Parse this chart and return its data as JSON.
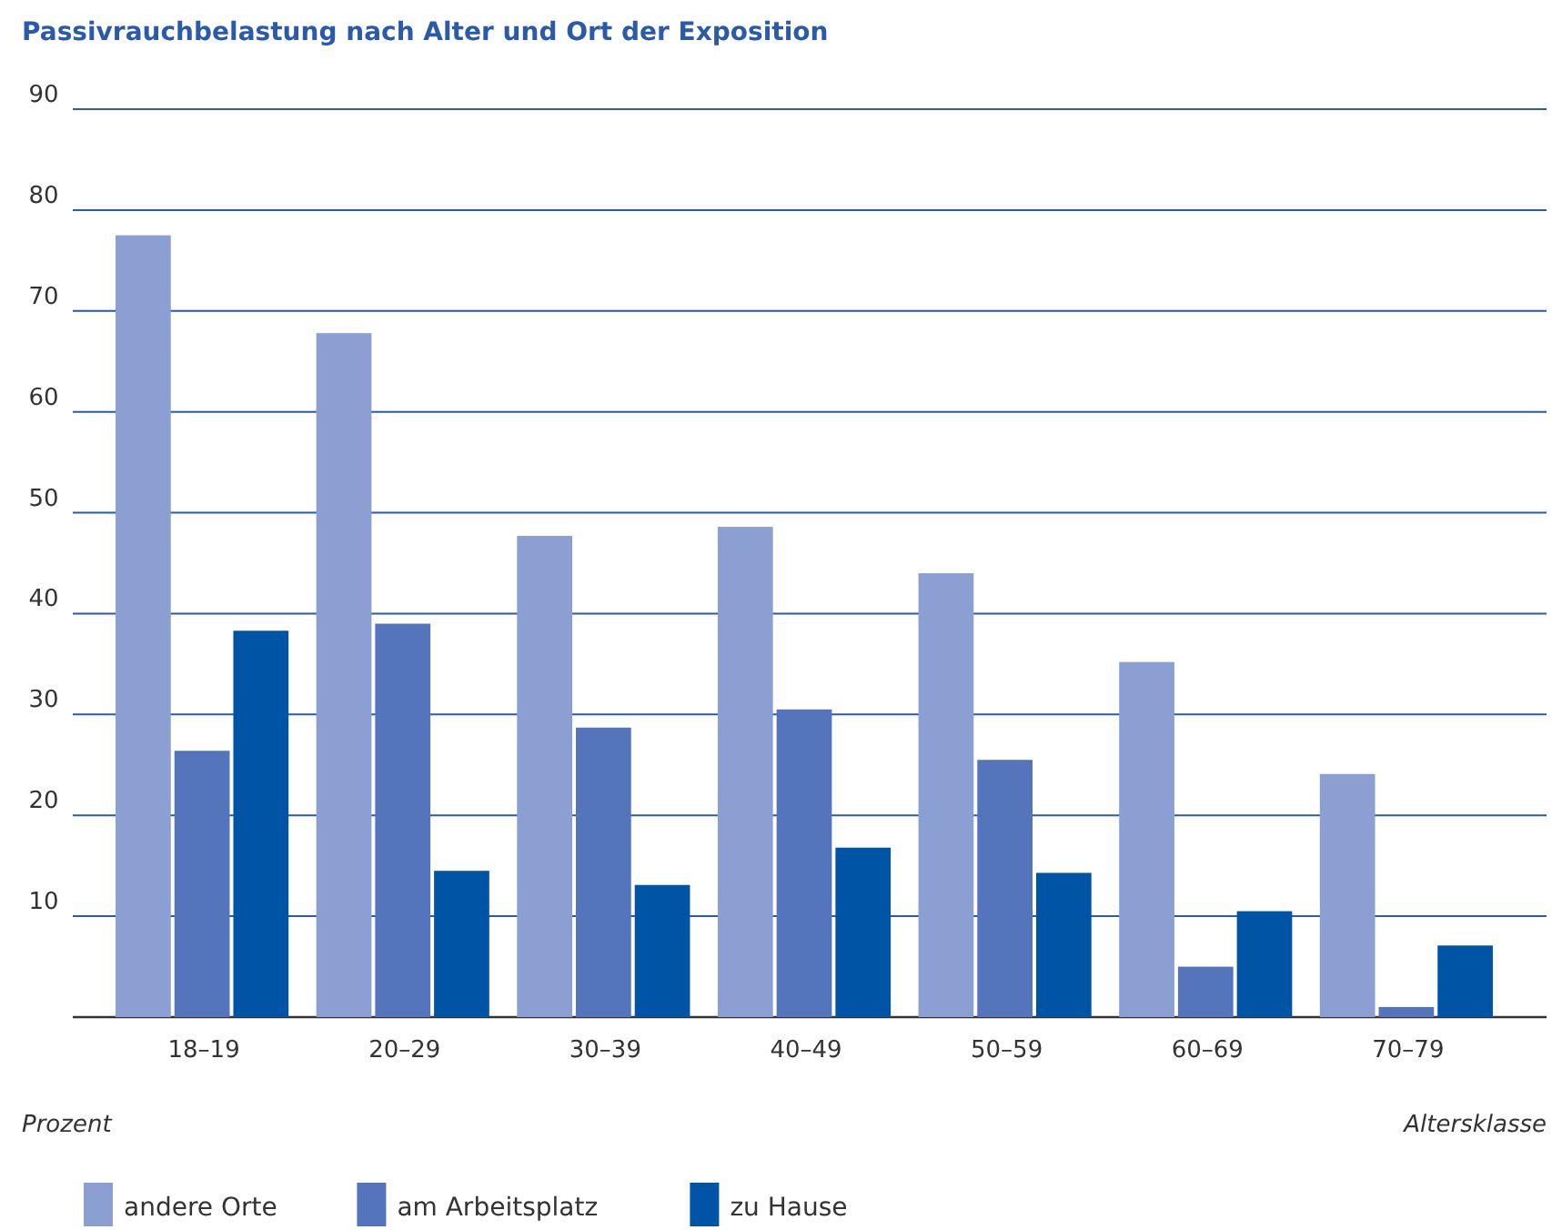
{
  "chart_data": {
    "type": "bar",
    "title": "Passivrauchbelastung nach Alter und Ort der Exposition",
    "xlabel": "Altersklasse",
    "ylabel": "Prozent",
    "categories": [
      "18–19",
      "20–29",
      "30–39",
      "40–49",
      "50–59",
      "60–69",
      "70–79"
    ],
    "series": [
      {
        "name": "andere Orte",
        "color": "#8b9fd3",
        "values": [
          77.5,
          67.8,
          47.7,
          48.6,
          44,
          35.2,
          24.1
        ]
      },
      {
        "name": "am Arbeitsplatz",
        "color": "#5474bb",
        "values": [
          26.4,
          39,
          28.7,
          30.5,
          25.5,
          5,
          1
        ]
      },
      {
        "name": "zu Hause",
        "color": "#0054a6",
        "values": [
          38.3,
          14.5,
          13.1,
          16.8,
          14.3,
          10.5,
          7.1
        ]
      }
    ],
    "ylim": [
      0,
      90
    ],
    "yticks": [
      10,
      20,
      30,
      40,
      50,
      60,
      70,
      80,
      90
    ],
    "grid": "y",
    "legend": "bottom left"
  }
}
